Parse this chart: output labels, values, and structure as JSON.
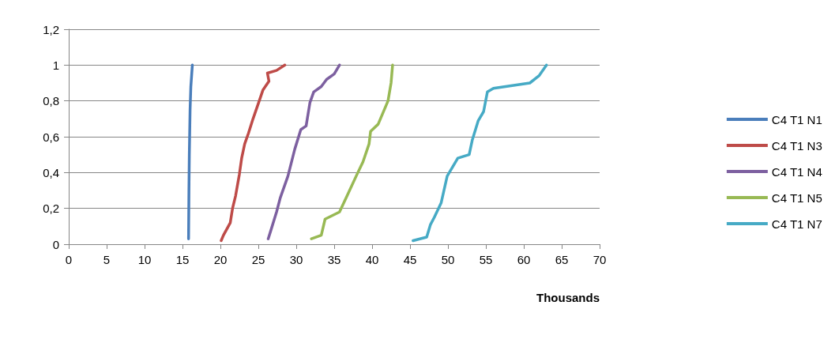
{
  "chart_data": {
    "type": "line",
    "xlabel": "Thousands",
    "xlim": [
      0,
      70
    ],
    "xticks": [
      0,
      5,
      10,
      15,
      20,
      25,
      30,
      35,
      40,
      45,
      50,
      55,
      60,
      65,
      70
    ],
    "ylim": [
      0,
      1.2
    ],
    "yticks": [
      0,
      {
        "value": 0.2,
        "label": "0,2"
      },
      {
        "value": 0.4,
        "label": "0,4"
      },
      {
        "value": 0.6,
        "label": "0,6"
      },
      {
        "value": 0.8,
        "label": "0,8"
      },
      1,
      {
        "value": 1.2,
        "label": "1,2"
      }
    ],
    "grid": "y",
    "legend": "right",
    "marker": "none",
    "line_style": "solid",
    "series": [
      {
        "name": "C4 T1 N1",
        "color": "#4a7ebb",
        "x": [
          15.8,
          15.85,
          15.9,
          16.0,
          16.1,
          16.3
        ],
        "values": [
          0.03,
          0.3,
          0.5,
          0.75,
          0.88,
          1
        ]
      },
      {
        "name": "C4 T1 N3",
        "color": "#be4b48",
        "x": [
          20.1,
          20.4,
          21.3,
          21.6,
          22.0,
          22.5,
          22.8,
          23.2,
          23.7,
          24.3,
          25.2,
          25.6,
          26.4,
          26.2,
          27.4,
          28.5
        ],
        "values": [
          0.02,
          0.05,
          0.12,
          0.2,
          0.27,
          0.39,
          0.48,
          0.56,
          0.62,
          0.7,
          0.81,
          0.86,
          0.91,
          0.955,
          0.97,
          1
        ]
      },
      {
        "name": "C4 T1 N4",
        "color": "#7d60a0",
        "x": [
          26.3,
          26.6,
          27.4,
          27.9,
          28.9,
          29.8,
          30.6,
          31.3,
          31.8,
          32.3,
          33.3,
          34.0,
          35.0,
          35.7
        ],
        "values": [
          0.03,
          0.07,
          0.18,
          0.26,
          0.38,
          0.53,
          0.64,
          0.66,
          0.79,
          0.85,
          0.88,
          0.92,
          0.95,
          1
        ]
      },
      {
        "name": "C4 T1 N5",
        "color": "#98b954",
        "x": [
          32.0,
          33.3,
          33.8,
          35.7,
          36.7,
          37.9,
          38.8,
          39.6,
          39.8,
          40.8,
          42.1,
          42.5,
          42.7
        ],
        "values": [
          0.03,
          0.05,
          0.14,
          0.18,
          0.27,
          0.38,
          0.46,
          0.56,
          0.63,
          0.67,
          0.8,
          0.9,
          1
        ]
      },
      {
        "name": "C4 T1 N7",
        "color": "#46aac5",
        "x": [
          45.4,
          47.2,
          47.7,
          48.2,
          49.1,
          49.9,
          51.3,
          52.8,
          53.2,
          54.0,
          54.7,
          55.2,
          56.0,
          60.8,
          62.0,
          63.0
        ],
        "values": [
          0.02,
          0.04,
          0.11,
          0.15,
          0.23,
          0.38,
          0.48,
          0.5,
          0.58,
          0.69,
          0.74,
          0.85,
          0.87,
          0.9,
          0.94,
          1
        ]
      }
    ]
  }
}
